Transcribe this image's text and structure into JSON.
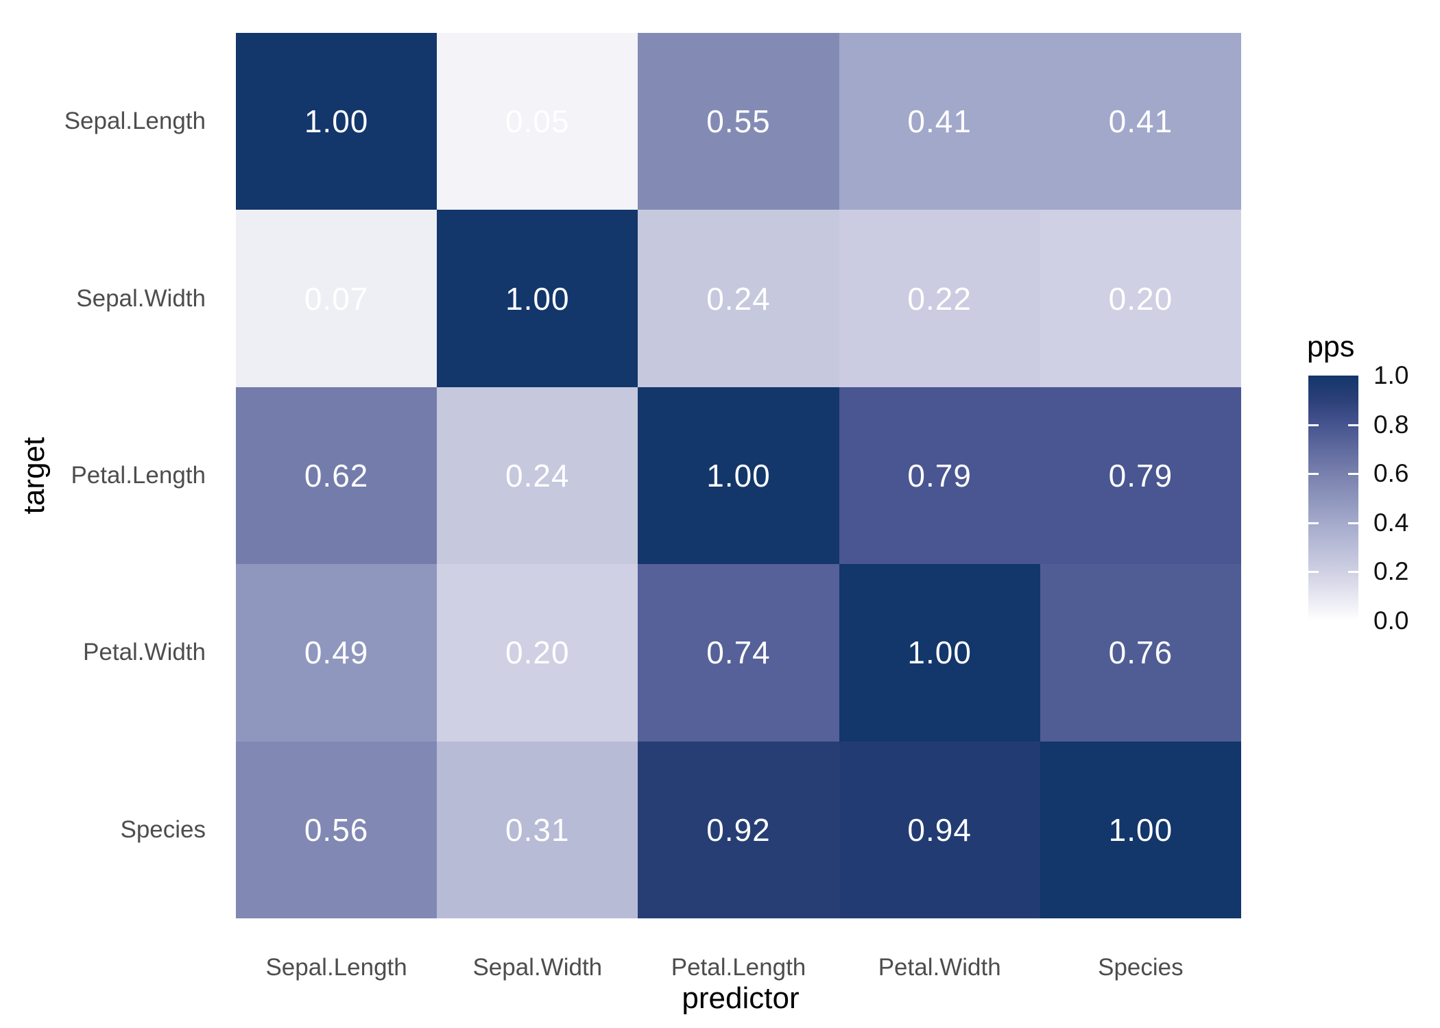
{
  "chart_data": {
    "type": "heatmap",
    "xlabel": "predictor",
    "ylabel": "target",
    "x_categories": [
      "Sepal.Length",
      "Sepal.Width",
      "Petal.Length",
      "Petal.Width",
      "Species"
    ],
    "y_categories": [
      "Sepal.Length",
      "Sepal.Width",
      "Petal.Length",
      "Petal.Width",
      "Species"
    ],
    "values": [
      [
        1.0,
        0.05,
        0.55,
        0.41,
        0.41
      ],
      [
        0.07,
        1.0,
        0.24,
        0.22,
        0.2
      ],
      [
        0.62,
        0.24,
        1.0,
        0.79,
        0.79
      ],
      [
        0.49,
        0.2,
        0.74,
        1.0,
        0.76
      ],
      [
        0.56,
        0.31,
        0.92,
        0.94,
        1.0
      ]
    ],
    "value_decimals": 2,
    "cell_text_color": "#ffffff",
    "axis_tick_color": "#4d4d4d",
    "axis_title_color": "#000000",
    "background_color": "#ffffff",
    "colormap_stops": [
      [
        0.0,
        "#ffffff"
      ],
      [
        0.2,
        "#cfd0e3"
      ],
      [
        0.4,
        "#a4aacb"
      ],
      [
        0.6,
        "#7880ad"
      ],
      [
        0.8,
        "#46548f"
      ],
      [
        0.9,
        "#2c4078"
      ],
      [
        1.0,
        "#13366b"
      ]
    ],
    "legend": {
      "title": "pps",
      "position": "right",
      "range": [
        0.0,
        1.0
      ],
      "ticks": [
        1.0,
        0.8,
        0.6,
        0.4,
        0.2,
        0.0
      ],
      "tick_labels": [
        "1.0",
        "0.8",
        "0.6",
        "0.4",
        "0.2",
        "0.0"
      ]
    },
    "grid": false
  }
}
